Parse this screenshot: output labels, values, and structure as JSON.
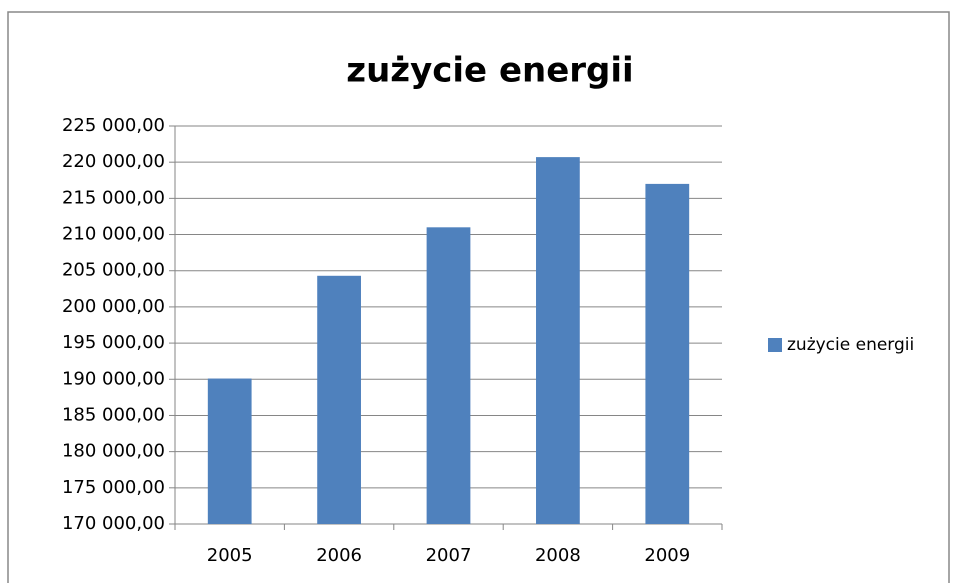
{
  "chart_data": {
    "type": "bar",
    "title": "zużycie energii",
    "categories": [
      "2005",
      "2006",
      "2007",
      "2008",
      "2009"
    ],
    "series": [
      {
        "name": "zużycie energii",
        "color": "#4f81bd",
        "values": [
          190100,
          204300,
          211000,
          220700,
          217000
        ]
      }
    ],
    "ylim": [
      170000,
      225000
    ],
    "yticks": [
      {
        "value": 170000,
        "label": "170 000,00"
      },
      {
        "value": 175000,
        "label": "175 000,00"
      },
      {
        "value": 180000,
        "label": "180 000,00"
      },
      {
        "value": 185000,
        "label": "185 000,00"
      },
      {
        "value": 190000,
        "label": "190 000,00"
      },
      {
        "value": 195000,
        "label": "195 000,00"
      },
      {
        "value": 200000,
        "label": "200 000,00"
      },
      {
        "value": 205000,
        "label": "205 000,00"
      },
      {
        "value": 210000,
        "label": "210 000,00"
      },
      {
        "value": 215000,
        "label": "215 000,00"
      },
      {
        "value": 220000,
        "label": "220 000,00"
      },
      {
        "value": 225000,
        "label": "225 000,00"
      }
    ],
    "grid": true,
    "legend": "right"
  }
}
